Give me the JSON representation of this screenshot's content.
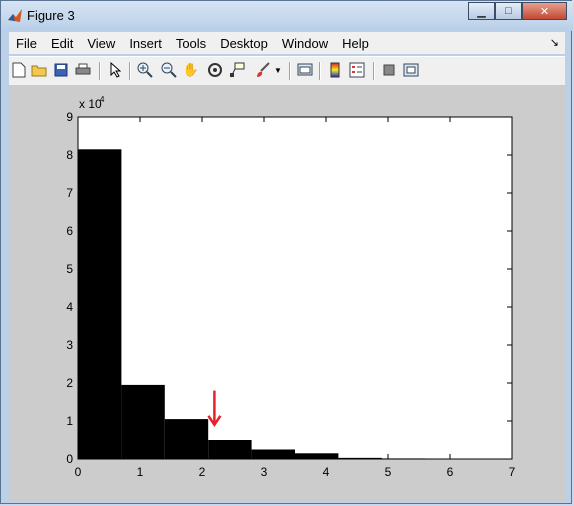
{
  "window": {
    "title": "Figure 3"
  },
  "menu": [
    "File",
    "Edit",
    "View",
    "Insert",
    "Tools",
    "Desktop",
    "Window",
    "Help"
  ],
  "toolbar": {
    "tools": [
      "new-figure-icon",
      "open-file-icon",
      "save-icon",
      "print-icon",
      "edit-plot-arrow-icon",
      "zoom-in-icon",
      "zoom-out-icon",
      "pan-hand-icon",
      "rotate-3d-icon",
      "data-cursor-icon",
      "brush-icon",
      "brush-dropdown-icon",
      "link-plot-icon",
      "colorbar-icon",
      "legend-icon",
      "hide-plot-tools-icon",
      "show-plot-tools-icon"
    ]
  },
  "chart_data": {
    "type": "bar",
    "title": "",
    "xlabel": "",
    "ylabel": "",
    "y_multiplier": "x 10",
    "y_multiplier_exp": "4",
    "xlim": [
      0,
      7
    ],
    "ylim": [
      0,
      9
    ],
    "xticks": [
      "0",
      "1",
      "2",
      "3",
      "4",
      "5",
      "6",
      "7"
    ],
    "yticks": [
      "0",
      "1",
      "2",
      "3",
      "4",
      "5",
      "6",
      "7",
      "8",
      "9"
    ],
    "bin_width": 0.7,
    "bins": [
      {
        "x0": 0.0,
        "x1": 0.7,
        "value": 81500
      },
      {
        "x0": 0.7,
        "x1": 1.4,
        "value": 19500
      },
      {
        "x0": 1.4,
        "x1": 2.1,
        "value": 10500
      },
      {
        "x0": 2.1,
        "x1": 2.8,
        "value": 5000
      },
      {
        "x0": 2.8,
        "x1": 3.5,
        "value": 2500
      },
      {
        "x0": 3.5,
        "x1": 4.2,
        "value": 1500
      },
      {
        "x0": 4.2,
        "x1": 4.9,
        "value": 300
      },
      {
        "x0": 4.9,
        "x1": 5.6,
        "value": 150
      },
      {
        "x0": 5.6,
        "x1": 6.3,
        "value": 100
      },
      {
        "x0": 6.3,
        "x1": 7.0,
        "value": 50
      }
    ],
    "bar_color": "#000000",
    "annotation": {
      "type": "arrow",
      "color": "#e8202a",
      "x": 2.2,
      "y_from": 18000,
      "y_to": 9000
    }
  }
}
